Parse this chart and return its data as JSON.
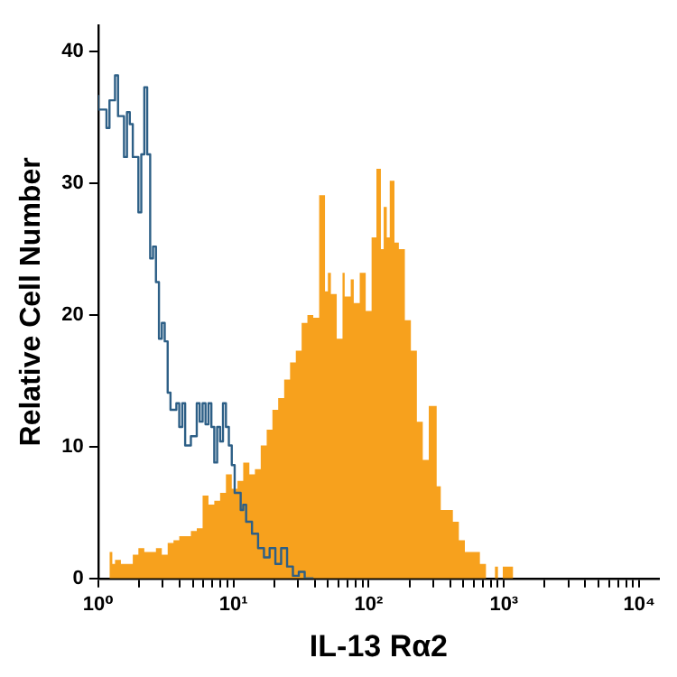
{
  "chart_data": {
    "type": "step",
    "xlabel": "IL-13 Rα2",
    "ylabel": "Relative Cell Number",
    "log": "x",
    "grid": false,
    "legend": false,
    "marker": "none",
    "xlim": [
      1,
      14000
    ],
    "ylim": [
      0,
      42
    ],
    "xticks": [
      {
        "value": 1,
        "label": "10⁰"
      },
      {
        "value": 2,
        "label": null
      },
      {
        "value": 3,
        "label": null
      },
      {
        "value": 4,
        "label": null
      },
      {
        "value": 5,
        "label": null
      },
      {
        "value": 6,
        "label": null
      },
      {
        "value": 7,
        "label": null
      },
      {
        "value": 8,
        "label": null
      },
      {
        "value": 9,
        "label": null
      },
      {
        "value": 10,
        "label": "10¹"
      },
      {
        "value": 20,
        "label": null
      },
      {
        "value": 30,
        "label": null
      },
      {
        "value": 40,
        "label": null
      },
      {
        "value": 50,
        "label": null
      },
      {
        "value": 60,
        "label": null
      },
      {
        "value": 70,
        "label": null
      },
      {
        "value": 80,
        "label": null
      },
      {
        "value": 90,
        "label": null
      },
      {
        "value": 100,
        "label": "10²"
      },
      {
        "value": 200,
        "label": null
      },
      {
        "value": 300,
        "label": null
      },
      {
        "value": 400,
        "label": null
      },
      {
        "value": 500,
        "label": null
      },
      {
        "value": 600,
        "label": null
      },
      {
        "value": 700,
        "label": null
      },
      {
        "value": 800,
        "label": null
      },
      {
        "value": 900,
        "label": null
      },
      {
        "value": 1000,
        "label": "10³"
      },
      {
        "value": 2000,
        "label": null
      },
      {
        "value": 3000,
        "label": null
      },
      {
        "value": 4000,
        "label": null
      },
      {
        "value": 5000,
        "label": null
      },
      {
        "value": 6000,
        "label": null
      },
      {
        "value": 7000,
        "label": null
      },
      {
        "value": 8000,
        "label": null
      },
      {
        "value": 9000,
        "label": null
      },
      {
        "value": 10000,
        "label": "10⁴"
      }
    ],
    "yticks": [
      0,
      10,
      20,
      30,
      40
    ],
    "series": [
      {
        "type": "area",
        "color": "#f7a11d",
        "x": [
          1.21,
          1.27,
          1.33,
          1.47,
          1.63,
          1.8,
          1.98,
          2.19,
          2.42,
          2.67,
          2.95,
          3.26,
          3.6,
          3.97,
          4.39,
          4.84,
          5.35,
          5.91,
          6.53,
          7.21,
          7.96,
          8.79,
          9.71,
          10.7,
          11.8,
          13.1,
          14.4,
          15.9,
          17.6,
          19.4,
          21.4,
          23.7,
          26.2,
          28.9,
          31.9,
          35.2,
          38.9,
          43,
          47.5,
          49.9,
          52.5,
          58,
          64,
          66.4,
          73.6,
          77.5,
          85.8,
          95,
          105,
          114,
          123,
          129,
          136,
          143,
          155,
          167,
          185,
          205,
          227,
          251,
          278,
          318,
          341,
          378,
          419,
          464,
          514,
          570,
          664,
          736,
          858,
          903,
          980,
          1166,
          1291
        ],
        "values": [
          0.9,
          2,
          1.1,
          1.4,
          1.1,
          1.1,
          1.8,
          2.3,
          2,
          2,
          2.3,
          1.8,
          2.7,
          2.9,
          3.2,
          3.2,
          3.6,
          3.8,
          6.3,
          5.6,
          5.9,
          6.5,
          7.9,
          6.8,
          7.4,
          8.8,
          7.9,
          8.3,
          10.1,
          11.3,
          12.8,
          13.7,
          15.1,
          16.4,
          17.3,
          19.4,
          20,
          19.8,
          29.1,
          21.8,
          23.2,
          21.6,
          18.2,
          23.2,
          21.4,
          22.7,
          20.9,
          23.2,
          20.3,
          25.9,
          31.1,
          25,
          28.2,
          25.9,
          30.2,
          25.5,
          25,
          19.6,
          17.3,
          11.9,
          9,
          13.1,
          7,
          5.2,
          5.2,
          4.3,
          2.9,
          2,
          2,
          1.1,
          0,
          0.9,
          0,
          0.9,
          0
        ]
      },
      {
        "color": "#2d5f86",
        "x": [
          1,
          1.15,
          1.21,
          1.33,
          1.4,
          1.55,
          1.63,
          1.71,
          1.8,
          1.98,
          2.08,
          2.19,
          2.3,
          2.42,
          2.54,
          2.67,
          2.81,
          2.95,
          3.1,
          3.26,
          3.42,
          3.78,
          3.97,
          4.18,
          4.39,
          4.84,
          5.35,
          5.62,
          5.91,
          6.21,
          6.53,
          6.86,
          7.21,
          7.57,
          7.96,
          8.36,
          8.79,
          9.24,
          9.71,
          10.2,
          11.3,
          11.8,
          12.4,
          13.7,
          15.2,
          16.8,
          18.5,
          20.4,
          22.5,
          24.9,
          27.5,
          30.4,
          33.6,
          37.1,
          39
        ],
        "values": [
          36.7,
          35.6,
          34.2,
          36.3,
          38.2,
          35.1,
          32,
          35.4,
          34.5,
          32,
          27.8,
          32.2,
          37.3,
          32.2,
          24.3,
          25.2,
          22.5,
          18.2,
          19.4,
          18,
          14.1,
          12.8,
          13.3,
          11.5,
          13.3,
          10.1,
          10.8,
          13.3,
          11.9,
          13.3,
          11.7,
          13.3,
          11.5,
          8.8,
          11.5,
          10.4,
          13.3,
          11.5,
          10.1,
          8.6,
          6.5,
          5.2,
          5.6,
          4.3,
          3.4,
          2.3,
          1.6,
          2.3,
          1.1,
          2.3,
          0.9,
          0.2,
          0.5,
          0,
          0
        ]
      }
    ]
  }
}
